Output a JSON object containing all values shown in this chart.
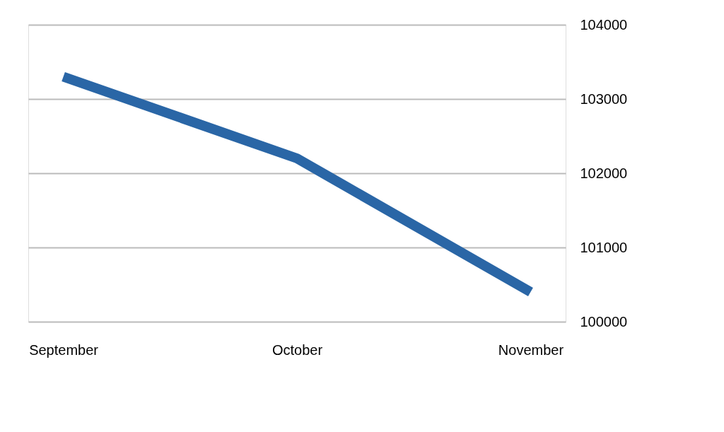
{
  "chart_data": {
    "type": "line",
    "categories": [
      "September",
      "October",
      "November"
    ],
    "series": [
      {
        "color": "#2a66a6",
        "values": [
          103300,
          102200,
          100400
        ]
      }
    ],
    "ylim": [
      100000,
      104000
    ],
    "yticks": [
      100000,
      101000,
      102000,
      103000,
      104000
    ],
    "grid": "y",
    "marker": "none",
    "line_style": "solid"
  }
}
